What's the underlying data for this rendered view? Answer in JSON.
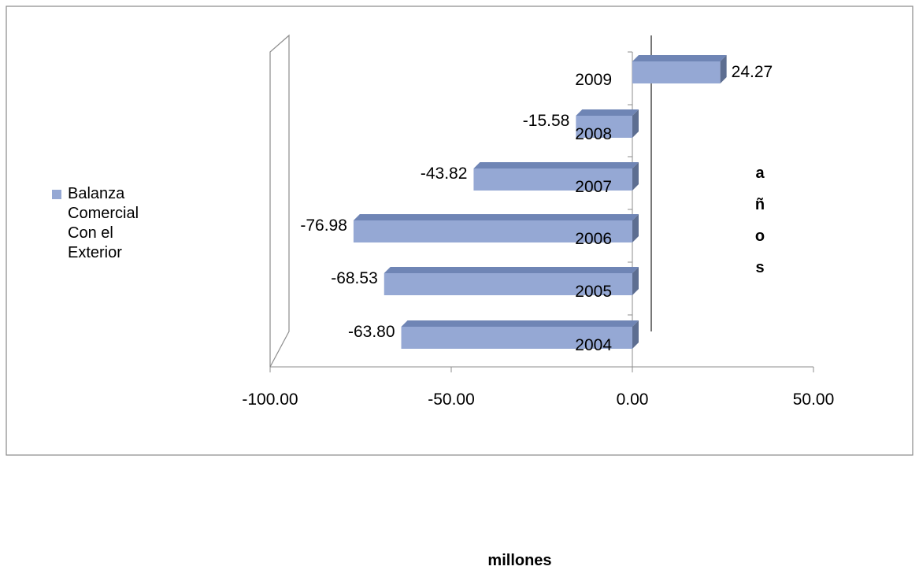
{
  "colors": {
    "bar_front": "#95A8D4",
    "bar_top": "#6F85B5",
    "bar_side": "#5D6E91",
    "frame": "#8C8C8C",
    "border": "#888888"
  },
  "legend": {
    "label": "Balanza Comercial Con el Exterior"
  },
  "chart_data": {
    "type": "bar",
    "orientation": "horizontal",
    "style": "3d",
    "categories": [
      "2004",
      "2005",
      "2006",
      "2007",
      "2008",
      "2009"
    ],
    "series": [
      {
        "name": "Balanza Comercial Con el Exterior",
        "values": [
          -63.8,
          -68.53,
          -76.98,
          -43.82,
          -15.58,
          24.27
        ]
      }
    ],
    "data_labels": [
      "-63.80",
      "-68.53",
      "-76.98",
      "-43.82",
      "-15.58",
      "24.27"
    ],
    "x_ticks": [
      "-100.00",
      "-50.00",
      "0.00",
      "50.00"
    ],
    "xlabel": "millones",
    "ylabel": "años",
    "ylim": [
      -100,
      50
    ],
    "legend_position": "left",
    "grid": false
  }
}
